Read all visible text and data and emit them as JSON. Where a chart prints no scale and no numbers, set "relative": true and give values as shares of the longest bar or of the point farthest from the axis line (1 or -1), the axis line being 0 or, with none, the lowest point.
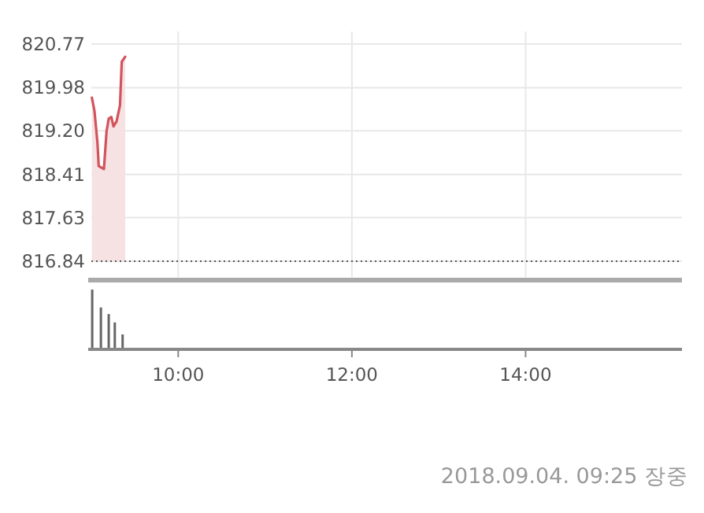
{
  "chart_data": [
    {
      "type": "area",
      "x": [
        9.006,
        9.036,
        9.07,
        9.085,
        9.145,
        9.175,
        9.2,
        9.23,
        9.255,
        9.29,
        9.33,
        9.35,
        9.39
      ],
      "values": [
        819.8,
        819.56,
        818.99,
        818.56,
        818.51,
        819.19,
        819.42,
        819.45,
        819.28,
        819.37,
        819.66,
        820.45,
        820.54
      ],
      "color": "#d2545c",
      "xlim": [
        9,
        15.8
      ],
      "xticks": [
        {
          "value": 10,
          "label": null
        },
        {
          "value": 12,
          "label": null
        },
        {
          "value": 14,
          "label": null
        }
      ],
      "ylim": [
        816.84,
        820.77
      ],
      "yticks": [
        {
          "value": 816.84,
          "label": "816.84"
        },
        {
          "value": 817.63,
          "label": "817.63"
        },
        {
          "value": 818.41,
          "label": "818.41"
        },
        {
          "value": 819.2,
          "label": "819.20"
        },
        {
          "value": 819.98,
          "label": "819.98"
        },
        {
          "value": 820.77,
          "label": "820.77"
        }
      ],
      "grid": true,
      "tick_labels": "y",
      "ref_lines": [
        {
          "axis": "y",
          "value": 816.84,
          "color": "#555555",
          "line_style": "dotted"
        }
      ]
    },
    {
      "type": "bar",
      "x": [
        9.01,
        9.11,
        9.2,
        9.27,
        9.36
      ],
      "values": [
        1,
        0.7,
        0.59,
        0.45,
        0.25
      ],
      "color": "#666666",
      "relative": true,
      "xlim": [
        9,
        15.8
      ],
      "xticks": [
        {
          "value": 10,
          "label": "10:00"
        },
        {
          "value": 12,
          "label": "12:00"
        },
        {
          "value": 14,
          "label": "14:00"
        }
      ],
      "tick_labels": "x",
      "annotations": [
        "2018.09.04. 09:25 장중"
      ]
    }
  ]
}
